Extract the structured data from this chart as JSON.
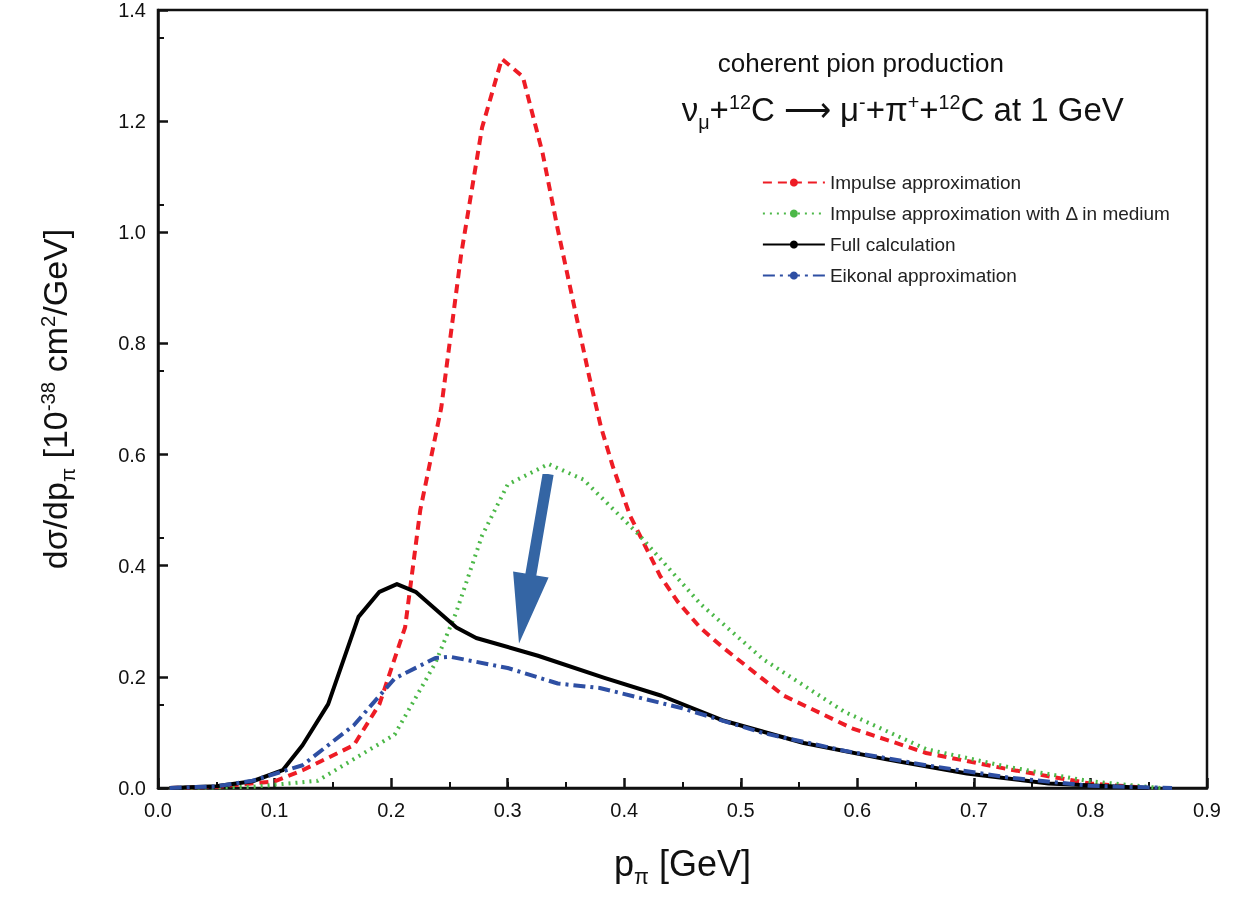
{
  "chart_data": {
    "type": "line",
    "xlabel": "p$_{π}$ [GeV]",
    "ylabel": "dσ/dp$_{π}$ [10$^{-38}$ cm$^{2}$/GeV]",
    "annotations": [
      "coherent pion production",
      "ν$_{μ}$+$^{12}$C ⟶ μ$^{-}$+π$^{+}$+$^{12}$C at 1 GeV"
    ],
    "xlim": [
      0,
      0.9
    ],
    "ylim": [
      0,
      1.4
    ],
    "xticks": [
      {
        "value": 0,
        "label": "0.0"
      },
      0.1,
      0.2,
      0.3,
      0.4,
      0.5,
      0.6,
      0.7,
      0.8,
      0.9
    ],
    "yticks": [
      {
        "value": 0,
        "label": "0.0"
      },
      0.2,
      0.4,
      0.6,
      0.8,
      {
        "value": 1,
        "label": "1.0"
      },
      1.2,
      1.4
    ],
    "grid": false,
    "legend": "top right",
    "marker": "none",
    "series": [
      {
        "name": "Impulse approximation",
        "color": "#ee1c25",
        "line_style": "dashed",
        "x": [
          0.01,
          0.05,
          0.1,
          0.124,
          0.168,
          0.19,
          0.212,
          0.225,
          0.243,
          0.26,
          0.278,
          0.295,
          0.313,
          0.33,
          0.343,
          0.37,
          0.38,
          0.39,
          0.405,
          0.431,
          0.446,
          0.465,
          0.484,
          0.537,
          0.596,
          0.659,
          0.729,
          0.8,
          0.85
        ],
        "values": [
          0,
          0.002,
          0.012,
          0.032,
          0.077,
          0.151,
          0.289,
          0.5,
          0.684,
          0.959,
          1.188,
          1.312,
          1.28,
          1.142,
          1.005,
          0.74,
          0.65,
          0.58,
          0.49,
          0.381,
          0.335,
          0.289,
          0.254,
          0.166,
          0.107,
          0.063,
          0.034,
          0.008,
          0
        ]
      },
      {
        "name": "Impulse approximation with Δ in medium",
        "color": "#4cb848",
        "line_style": "dotted",
        "x": [
          0.01,
          0.08,
          0.137,
          0.203,
          0.238,
          0.256,
          0.278,
          0.3,
          0.335,
          0.365,
          0.412,
          0.466,
          0.519,
          0.589,
          0.659,
          0.729,
          0.8,
          0.86
        ],
        "values": [
          0,
          0.002,
          0.013,
          0.096,
          0.225,
          0.317,
          0.454,
          0.546,
          0.583,
          0.555,
          0.457,
          0.33,
          0.232,
          0.137,
          0.07,
          0.038,
          0.012,
          0
        ]
      },
      {
        "name": "Full calculation",
        "color": "#000000",
        "line_style": "solid",
        "x": [
          0.01,
          0.05,
          0.081,
          0.107,
          0.124,
          0.146,
          0.172,
          0.19,
          0.205,
          0.221,
          0.256,
          0.273,
          0.326,
          0.383,
          0.432,
          0.484,
          0.554,
          0.624,
          0.694,
          0.764,
          0.85
        ],
        "values": [
          0,
          0.003,
          0.012,
          0.032,
          0.077,
          0.151,
          0.308,
          0.353,
          0.367,
          0.353,
          0.289,
          0.27,
          0.238,
          0.198,
          0.166,
          0.122,
          0.081,
          0.052,
          0.026,
          0.008,
          0
        ]
      },
      {
        "name": "Eikonal approximation",
        "color": "#2e4fa3",
        "line_style": "dashdot",
        "x": [
          0.01,
          0.05,
          0.081,
          0.124,
          0.168,
          0.203,
          0.238,
          0.251,
          0.3,
          0.343,
          0.379,
          0.449,
          0.519,
          0.589,
          0.659,
          0.729,
          0.8,
          0.87
        ],
        "values": [
          0,
          0.003,
          0.013,
          0.041,
          0.113,
          0.197,
          0.234,
          0.236,
          0.216,
          0.188,
          0.18,
          0.144,
          0.099,
          0.067,
          0.041,
          0.019,
          0.004,
          0
        ]
      }
    ]
  }
}
